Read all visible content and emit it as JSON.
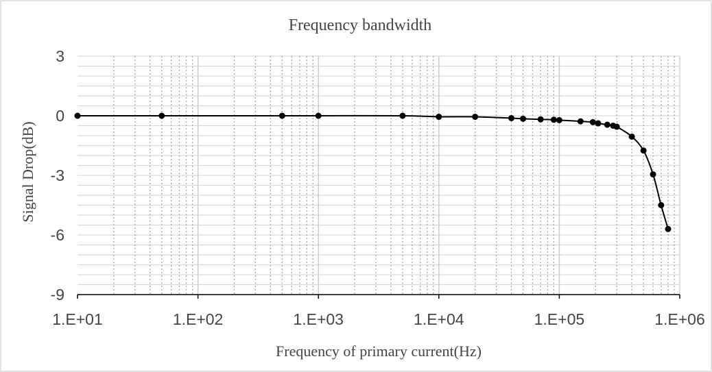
{
  "chart_data": {
    "type": "scatter",
    "title": "Frequency bandwidth",
    "xlabel": "Frequency of primary current(Hz)",
    "ylabel": "Signal Drop(dB)",
    "x_scale": "log",
    "xlim": [
      10,
      1000000
    ],
    "ylim": [
      -9,
      3
    ],
    "x_ticks": [
      "1.E+01",
      "1.E+02",
      "1.E+03",
      "1.E+04",
      "1.E+05",
      "1.E+06"
    ],
    "y_ticks": [
      "3",
      "0",
      "-3",
      "-6",
      "-9"
    ],
    "grid": true,
    "legend": "none",
    "series": [
      {
        "x": [
          10,
          50,
          500,
          1000,
          5000,
          10000,
          20000,
          40000,
          50000,
          70000,
          90000,
          100000,
          150000,
          190000,
          210000,
          250000,
          280000,
          300000,
          400000,
          500000,
          600000,
          700000,
          800000
        ],
        "y": [
          0,
          0,
          0,
          0,
          0,
          -0.05,
          -0.05,
          -0.12,
          -0.15,
          -0.18,
          -0.2,
          -0.22,
          -0.28,
          -0.32,
          -0.38,
          -0.45,
          -0.5,
          -0.55,
          -1.05,
          -1.75,
          -2.95,
          -4.5,
          -5.7
        ]
      }
    ]
  }
}
